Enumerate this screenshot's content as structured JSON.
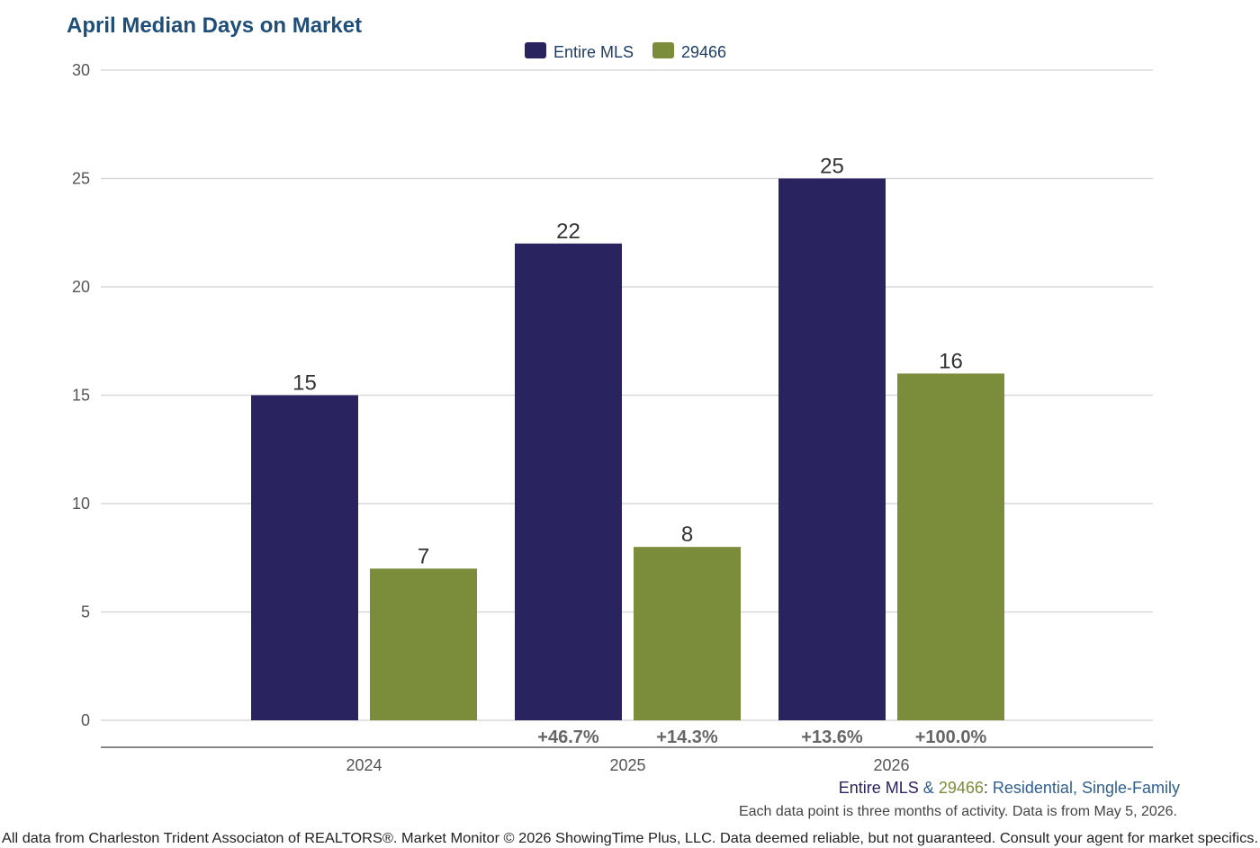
{
  "colors": {
    "entire_mls": "#29235f",
    "zip": "#7b8c3a",
    "title": "#1f4e79",
    "subtitle_blue": "#2f5f8f",
    "grid": "#d9d9d9",
    "axis": "#888888"
  },
  "footer": {
    "series_a": "Entire MLS",
    "amp": " & ",
    "series_b": "29466",
    "colon": ": ",
    "property_type": "Residential",
    "comma": ", ",
    "subtype": "Single-Family",
    "note": "Each data point is three months of activity. Data is from May 5, 2026.",
    "legal": "All data from Charleston Trident Associaton of REALTORS®. Market Monitor © 2026 ShowingTime Plus, LLC. Data deemed reliable, but not guaranteed. Consult your agent for market specifics."
  },
  "chart_data": {
    "type": "bar",
    "title": "April Median Days on Market",
    "categories": [
      "2024",
      "2025",
      "2026"
    ],
    "series": [
      {
        "name": "Entire MLS",
        "values": [
          15,
          22,
          25
        ],
        "changes": [
          "",
          "+46.7%",
          "+13.6%"
        ]
      },
      {
        "name": "29466",
        "values": [
          7,
          8,
          16
        ],
        "changes": [
          "",
          "+14.3%",
          "+100.0%"
        ]
      }
    ],
    "ylim": [
      0,
      30
    ],
    "yticks": [
      0,
      5,
      10,
      15,
      20,
      25,
      30
    ],
    "grid": true,
    "legend": "top-center",
    "xlabel": "",
    "ylabel": ""
  }
}
